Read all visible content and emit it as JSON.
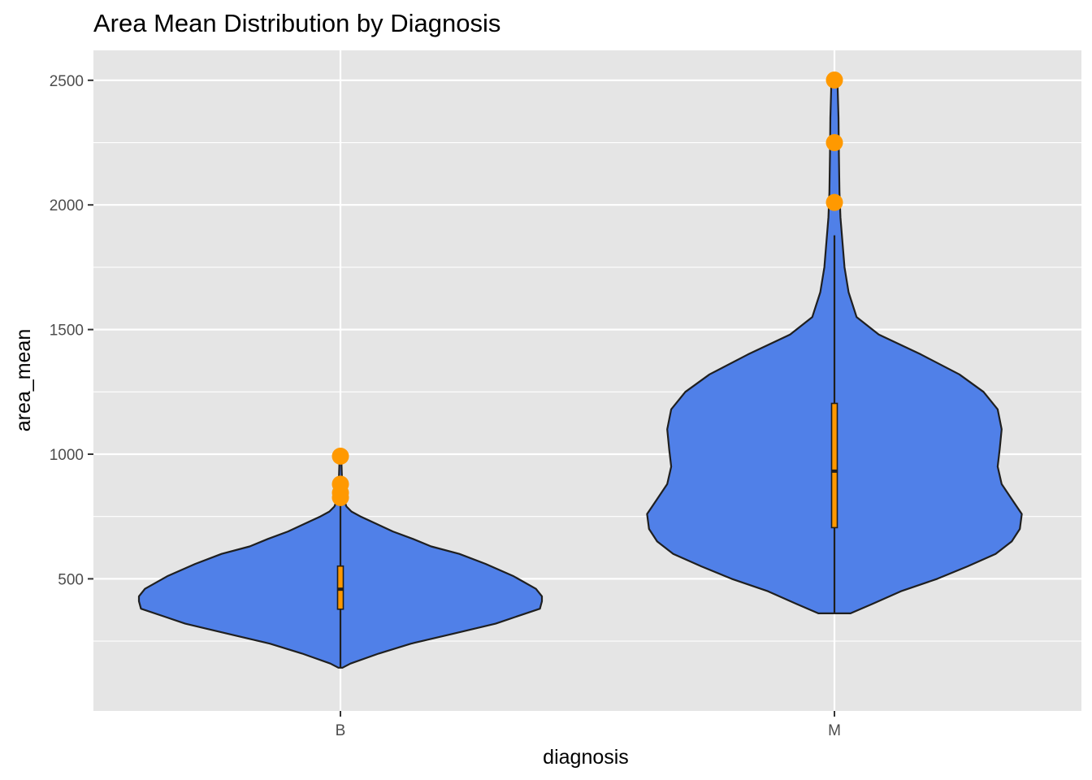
{
  "colors": {
    "panel_background": "#e5e5e5",
    "grid": "#ffffff",
    "violin_fill": "#5080e8",
    "violin_outline": "#1f1f1f",
    "box_fill": "#ff9900",
    "outlier": "#ff9900",
    "tick_text": "#4d4d4d"
  },
  "chart_data": {
    "type": "violin",
    "title": "Area Mean Distribution by Diagnosis",
    "xlabel": "diagnosis",
    "ylabel": "area_mean",
    "categories": [
      "B",
      "M"
    ],
    "ylim": [
      -30,
      2620
    ],
    "y_ticks": [
      500,
      1000,
      1500,
      2000,
      2500
    ],
    "y_tick_labels": [
      "500",
      "1000",
      "1500",
      "2000",
      "2500"
    ],
    "grid": true,
    "legend": "none",
    "series": [
      {
        "category": "B",
        "min": 143.5,
        "max": 992.1,
        "box": {
          "q1": 378.2,
          "median": 458.4,
          "q3": 551.1,
          "whisker_low": 143.5,
          "whisker_high": 800
        },
        "outliers": [
          992.1,
          880,
          845,
          826
        ],
        "density": [
          [
            143.5,
            0.01
          ],
          [
            160,
            0.05
          ],
          [
            200,
            0.19
          ],
          [
            240,
            0.35
          ],
          [
            280,
            0.56
          ],
          [
            320,
            0.77
          ],
          [
            345,
            0.86
          ],
          [
            380,
            0.99
          ],
          [
            410,
            1.0
          ],
          [
            430,
            1.0
          ],
          [
            460,
            0.97
          ],
          [
            510,
            0.86
          ],
          [
            560,
            0.72
          ],
          [
            600,
            0.59
          ],
          [
            630,
            0.45
          ],
          [
            660,
            0.36
          ],
          [
            690,
            0.26
          ],
          [
            720,
            0.18
          ],
          [
            750,
            0.1
          ],
          [
            770,
            0.055
          ],
          [
            790,
            0.03
          ],
          [
            820,
            0.016
          ],
          [
            860,
            0.01
          ],
          [
            920,
            0.007
          ],
          [
            970,
            0.005
          ],
          [
            992.1,
            0.002
          ]
        ]
      },
      {
        "category": "M",
        "min": 361.6,
        "max": 2501,
        "box": {
          "q1": 705.3,
          "median": 932.0,
          "q3": 1203.8,
          "whisker_low": 361.6,
          "whisker_high": 1878
        },
        "outliers": [
          2501,
          2250,
          2010
        ],
        "density": [
          [
            361.6,
            0.08
          ],
          [
            400,
            0.19
          ],
          [
            450,
            0.33
          ],
          [
            500,
            0.51
          ],
          [
            550,
            0.66
          ],
          [
            600,
            0.8
          ],
          [
            650,
            0.88
          ],
          [
            700,
            0.92
          ],
          [
            760,
            0.93
          ],
          [
            820,
            0.88
          ],
          [
            880,
            0.83
          ],
          [
            950,
            0.81
          ],
          [
            1020,
            0.82
          ],
          [
            1100,
            0.83
          ],
          [
            1180,
            0.81
          ],
          [
            1250,
            0.74
          ],
          [
            1320,
            0.62
          ],
          [
            1400,
            0.43
          ],
          [
            1480,
            0.22
          ],
          [
            1550,
            0.11
          ],
          [
            1650,
            0.07
          ],
          [
            1750,
            0.05
          ],
          [
            1850,
            0.04
          ],
          [
            1950,
            0.03
          ],
          [
            2050,
            0.025
          ],
          [
            2200,
            0.022
          ],
          [
            2350,
            0.02
          ],
          [
            2500,
            0.015
          ]
        ]
      }
    ]
  }
}
